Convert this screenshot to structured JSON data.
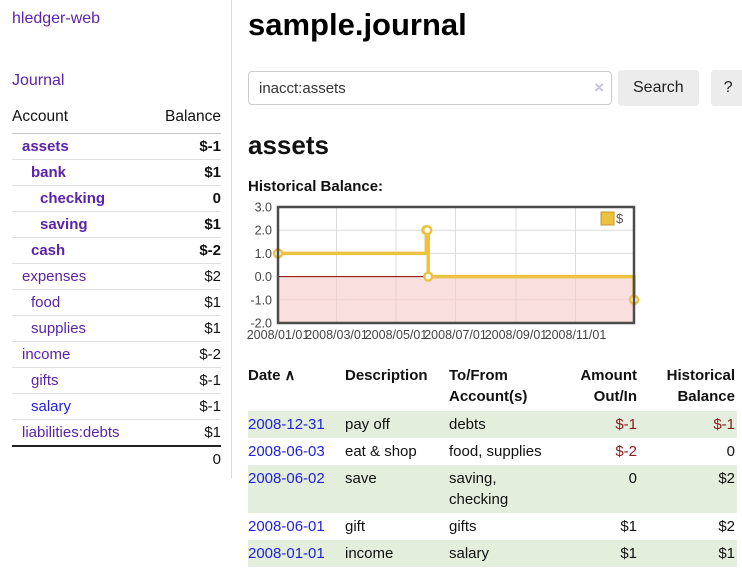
{
  "sidebar": {
    "brand": "hledger-web",
    "journal_link": "Journal",
    "accounts_table": {
      "col_account": "Account",
      "col_balance": "Balance",
      "rows": [
        {
          "name": "assets",
          "balance": "$-1",
          "depth": 1,
          "bold": true,
          "link_color": "purple",
          "balance_tone": "neg-dark"
        },
        {
          "name": "bank",
          "balance": "$1",
          "depth": 2,
          "bold": true,
          "link_color": "purple",
          "balance_tone": "plain"
        },
        {
          "name": "checking",
          "balance": "0",
          "depth": 3,
          "bold": true,
          "link_color": "purple",
          "balance_tone": "plain"
        },
        {
          "name": "saving",
          "balance": "$1",
          "depth": 3,
          "bold": true,
          "link_color": "purple",
          "balance_tone": "plain"
        },
        {
          "name": "cash",
          "balance": "$-2",
          "depth": 2,
          "bold": true,
          "link_color": "purple",
          "balance_tone": "neg-dark"
        },
        {
          "name": "expenses",
          "balance": "$2",
          "depth": 1,
          "bold": false,
          "link_color": "purple",
          "balance_tone": "plain"
        },
        {
          "name": "food",
          "balance": "$1",
          "depth": 2,
          "bold": false,
          "link_color": "purple",
          "balance_tone": "plain"
        },
        {
          "name": "supplies",
          "balance": "$1",
          "depth": 2,
          "bold": false,
          "link_color": "purple",
          "balance_tone": "plain"
        },
        {
          "name": "income",
          "balance": "$-2",
          "depth": 1,
          "bold": false,
          "link_color": "purple",
          "balance_tone": "neg-soft"
        },
        {
          "name": "gifts",
          "balance": "$-1",
          "depth": 2,
          "bold": false,
          "link_color": "purple",
          "balance_tone": "neg-soft"
        },
        {
          "name": "salary",
          "balance": "$-1",
          "depth": 2,
          "bold": false,
          "link_color": "blue",
          "balance_tone": "neg-soft"
        },
        {
          "name": "liabilities:debts",
          "balance": "$1",
          "depth": 1,
          "bold": false,
          "link_color": "purple",
          "balance_tone": "plain"
        }
      ],
      "total": "0"
    }
  },
  "main": {
    "title": "sample.journal",
    "search": {
      "value": "inacct:assets",
      "clear_icon": "×",
      "search_button": "Search",
      "help_button": "?"
    },
    "account_heading": "assets",
    "chart_label": "Historical Balance:"
  },
  "chart_data": {
    "type": "line",
    "step": true,
    "title": "Historical Balance",
    "x_range": [
      "2008-01-01",
      "2008-12-31"
    ],
    "ylim": [
      -2,
      3
    ],
    "y_ticks": [
      3,
      2,
      1,
      0,
      -1,
      -2
    ],
    "x_ticks": [
      {
        "date": "2008-01-01",
        "label": "2008/01/01"
      },
      {
        "date": "2008-03-01",
        "label": "2008/03/01"
      },
      {
        "date": "2008-05-01",
        "label": "2008/05/01"
      },
      {
        "date": "2008-07-01",
        "label": "2008/07/01"
      },
      {
        "date": "2008-09-01",
        "label": "2008/09/01"
      },
      {
        "date": "2008-11-01",
        "label": "2008/11/01"
      }
    ],
    "series": [
      {
        "name": "$",
        "color": "#edc240",
        "points": [
          {
            "x": "2008-01-01",
            "y": 1
          },
          {
            "x": "2008-06-01",
            "y": 2
          },
          {
            "x": "2008-06-02",
            "y": 2
          },
          {
            "x": "2008-06-03",
            "y": 0
          },
          {
            "x": "2008-12-31",
            "y": -1
          }
        ]
      }
    ],
    "legend": {
      "position": "top-right",
      "label": "$",
      "swatch_color": "#edc240"
    },
    "grid": true,
    "zero_line_color": "#8b0000",
    "negative_region_color": "#f6caca"
  },
  "register": {
    "headers": {
      "date": "Date",
      "sort_icon": "∧",
      "description": "Description",
      "accounts": "To/From Account(s)",
      "amount": "Amount Out/In",
      "balance": "Historical Balance"
    },
    "rows": [
      {
        "date": "2008-12-31",
        "description": "pay off",
        "accounts": "debts",
        "amount": "$-1",
        "amount_negative": true,
        "balance": "$-1",
        "balance_negative": true
      },
      {
        "date": "2008-06-03",
        "description": "eat & shop",
        "accounts": "food, supplies",
        "amount": "$-2",
        "amount_negative": true,
        "balance": "0",
        "balance_negative": false
      },
      {
        "date": "2008-06-02",
        "description": "save",
        "accounts": "saving, checking",
        "amount": "0",
        "amount_negative": false,
        "balance": "$2",
        "balance_negative": false
      },
      {
        "date": "2008-06-01",
        "description": "gift",
        "accounts": "gifts",
        "amount": "$1",
        "amount_negative": false,
        "balance": "$2",
        "balance_negative": false
      },
      {
        "date": "2008-01-01",
        "description": "income",
        "accounts": "salary",
        "amount": "$1",
        "amount_negative": false,
        "balance": "$1",
        "balance_negative": false
      }
    ]
  }
}
